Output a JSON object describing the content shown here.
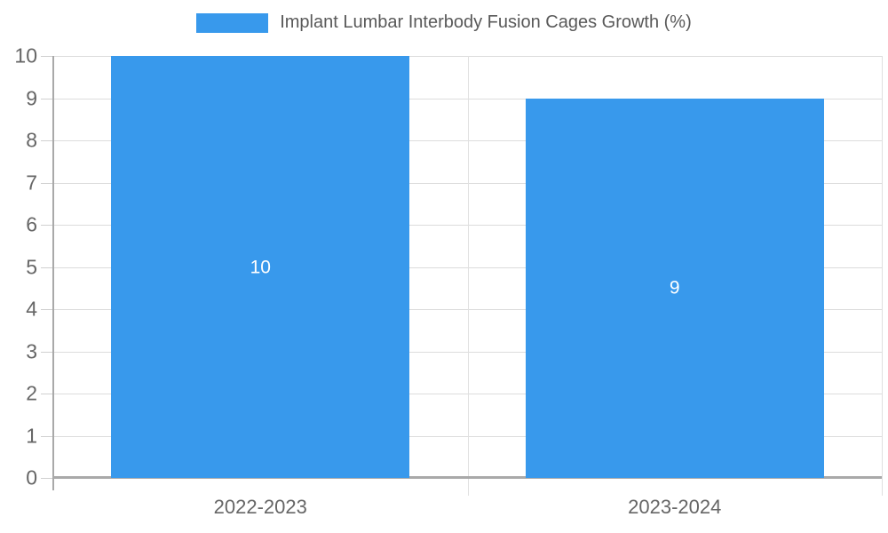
{
  "legend": {
    "label": "Implant Lumbar Interbody Fusion Cages Growth (%)"
  },
  "chart_data": {
    "type": "bar",
    "title": "Implant Lumbar Interbody Fusion Cages Growth (%)",
    "categories": [
      "2022-2023",
      "2023-2024"
    ],
    "series": [
      {
        "name": "Implant Lumbar Interbody Fusion Cages Growth (%)",
        "values": [
          10,
          9
        ]
      }
    ],
    "values": [
      10,
      9
    ],
    "bar_value_labels": [
      "10",
      "9"
    ],
    "xlabel": "",
    "ylabel": "",
    "ylim": [
      0,
      10
    ],
    "yticks": [
      0,
      1,
      2,
      3,
      4,
      5,
      6,
      7,
      8,
      9,
      10
    ],
    "grid": true,
    "legend_position": "top-center",
    "colors": {
      "bar": "#3899ec",
      "bar_label": "#ffffff",
      "axis": "#a9a9a9",
      "gridline": "#dcdcdc",
      "tick_label": "#666666",
      "legend_text": "#595959"
    }
  }
}
